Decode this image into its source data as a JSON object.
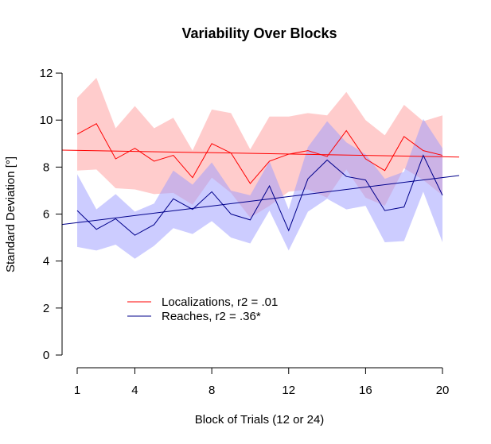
{
  "chart_data": {
    "type": "line",
    "title": "Variability Over Blocks",
    "xlabel": "Block of Trials (12 or 24)",
    "ylabel": "Standard Deviation [°]",
    "xlim": [
      1,
      20
    ],
    "ylim": [
      0,
      12
    ],
    "x_ticks": [
      1,
      4,
      8,
      12,
      16,
      20
    ],
    "x_tick_labels": [
      "1",
      "4",
      "8",
      "12",
      "16",
      "20"
    ],
    "y_ticks": [
      0,
      2,
      4,
      6,
      8,
      10,
      12
    ],
    "y_tick_labels": [
      "0",
      "2",
      "4",
      "6",
      "8",
      "10",
      "12"
    ],
    "grid": false,
    "legend_position": "bottom-left",
    "x": [
      1,
      2,
      3,
      4,
      5,
      6,
      7,
      8,
      9,
      10,
      11,
      12,
      13,
      14,
      15,
      16,
      17,
      18,
      19,
      20
    ],
    "series": [
      {
        "name": "Localizations, r2 = .01",
        "color": "#ff0000",
        "band_color": "#ff9999",
        "values": [
          9.4,
          9.85,
          8.35,
          8.8,
          8.25,
          8.5,
          7.55,
          9.0,
          8.6,
          7.3,
          8.25,
          8.55,
          8.7,
          8.45,
          9.55,
          8.35,
          7.85,
          9.3,
          8.7,
          8.5
        ],
        "upper": [
          10.95,
          11.8,
          9.65,
          10.6,
          9.65,
          10.1,
          8.7,
          10.45,
          10.3,
          8.75,
          10.15,
          10.15,
          10.3,
          10.2,
          11.2,
          10.0,
          9.35,
          10.65,
          9.95,
          10.2
        ],
        "lower": [
          7.85,
          7.9,
          7.1,
          7.05,
          6.85,
          6.9,
          6.4,
          7.55,
          6.9,
          5.85,
          6.35,
          6.95,
          7.05,
          6.7,
          7.9,
          6.7,
          6.35,
          7.95,
          7.45,
          6.8
        ],
        "trend": [
          8.72,
          8.44
        ]
      },
      {
        "name": "Reaches, r2 = .36*",
        "color": "#00008b",
        "band_color": "#9999ff",
        "values": [
          6.15,
          5.35,
          5.8,
          5.1,
          5.55,
          6.65,
          6.2,
          6.95,
          6.0,
          5.75,
          7.2,
          5.3,
          7.5,
          8.3,
          7.6,
          7.45,
          6.15,
          6.3,
          8.5,
          6.8
        ],
        "upper": [
          7.7,
          6.2,
          6.85,
          6.1,
          6.45,
          7.85,
          7.25,
          8.2,
          7.0,
          6.8,
          8.25,
          6.2,
          8.85,
          9.95,
          9.05,
          8.55,
          7.5,
          7.8,
          10.05,
          8.8
        ],
        "lower": [
          4.6,
          4.45,
          4.7,
          4.1,
          4.65,
          5.4,
          5.15,
          5.7,
          5.0,
          4.75,
          6.15,
          4.45,
          6.1,
          6.65,
          6.2,
          6.35,
          4.8,
          4.85,
          6.95,
          4.8
        ],
        "trend": [
          5.58,
          7.55
        ]
      }
    ]
  }
}
